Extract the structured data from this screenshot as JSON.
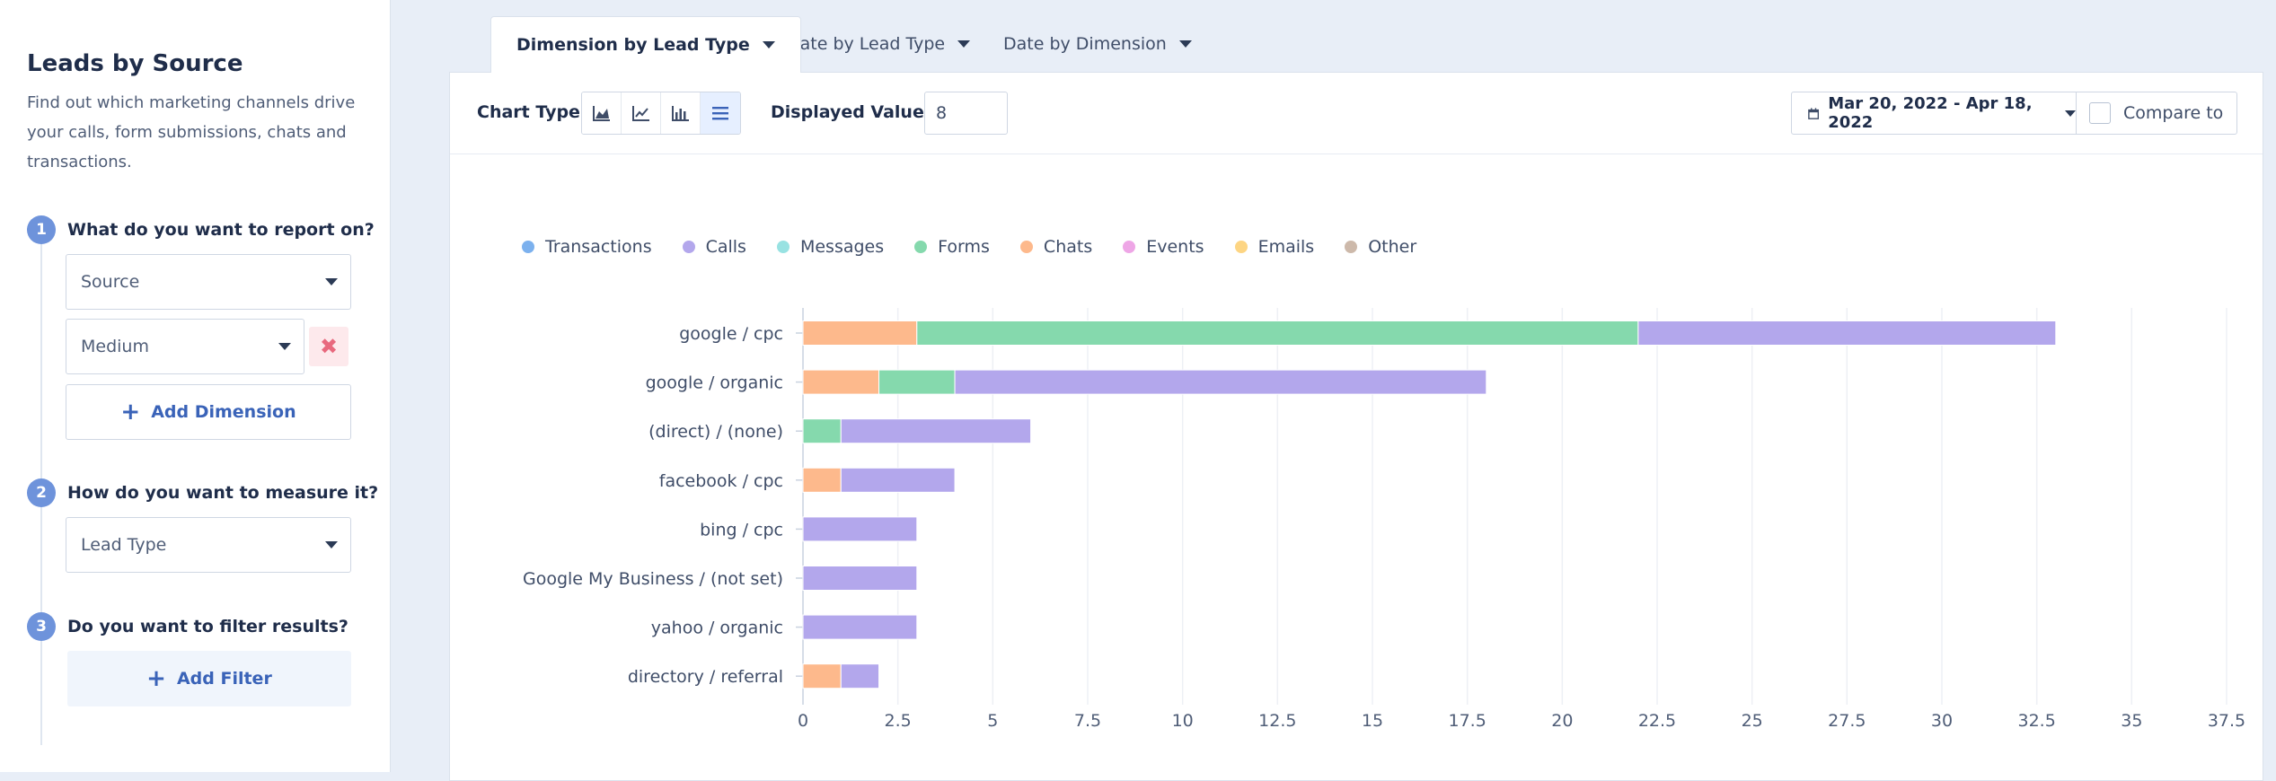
{
  "sidebar": {
    "title": "Leads by Source",
    "description": "Find out which marketing channels drive your calls, form submissions, chats and transactions.",
    "steps": [
      {
        "num": "1",
        "label": "What do you want to report on?"
      },
      {
        "num": "2",
        "label": "How do you want to measure it?"
      },
      {
        "num": "3",
        "label": "Do you want to filter results?"
      }
    ],
    "dimension_1": "Source",
    "dimension_2": "Medium",
    "remove_symbol": "✖",
    "add_dimension": "Add Dimension",
    "measure": "Lead Type",
    "add_filter": "Add Filter"
  },
  "tabs": [
    {
      "label": "Dimension by Lead Type",
      "active": true
    },
    {
      "label": "Date by Lead Type",
      "active": false
    },
    {
      "label": "Date by Dimension",
      "active": false
    }
  ],
  "toolbar": {
    "chart_type_label": "Chart Type",
    "chart_type_icons": [
      "area-chart-icon",
      "line-chart-icon",
      "column-chart-icon",
      "bar-list-icon"
    ],
    "displayed_values_label": "Displayed Values",
    "displayed_values": "8",
    "date_range": "Mar 20, 2022 - Apr 18, 2022",
    "compare_to": "Compare to"
  },
  "colors": {
    "Transactions": "#7cb1ee",
    "Calls": "#b3a7ec",
    "Messages": "#98e2e2",
    "Forms": "#85d9ad",
    "Chats": "#fdb98c",
    "Events": "#eea6e6",
    "Emails": "#fdd583",
    "Other": "#cdb9aa"
  },
  "chart_data": {
    "type": "bar",
    "orientation": "horizontal",
    "stacked": true,
    "legend": [
      "Transactions",
      "Calls",
      "Messages",
      "Forms",
      "Chats",
      "Events",
      "Emails",
      "Other"
    ],
    "legend_position": "top-left",
    "categories": [
      "google / cpc",
      "google / organic",
      "(direct) / (none)",
      "facebook / cpc",
      "bing / cpc",
      "Google My Business / (not set)",
      "yahoo / organic",
      "directory / referral"
    ],
    "series": [
      {
        "name": "Chats",
        "values": [
          3,
          2,
          0,
          1,
          0,
          0,
          0,
          1
        ]
      },
      {
        "name": "Forms",
        "values": [
          19,
          2,
          1,
          0,
          0,
          0,
          0,
          0
        ]
      },
      {
        "name": "Calls",
        "values": [
          11,
          14,
          5,
          3,
          3,
          3,
          3,
          1
        ]
      }
    ],
    "xlim": [
      0,
      37.5
    ],
    "xticks": [
      "0",
      "2.5",
      "5",
      "7.5",
      "10",
      "12.5",
      "15",
      "17.5",
      "20",
      "22.5",
      "25",
      "27.5",
      "30",
      "32.5",
      "35",
      "37.5"
    ],
    "grid": true
  }
}
